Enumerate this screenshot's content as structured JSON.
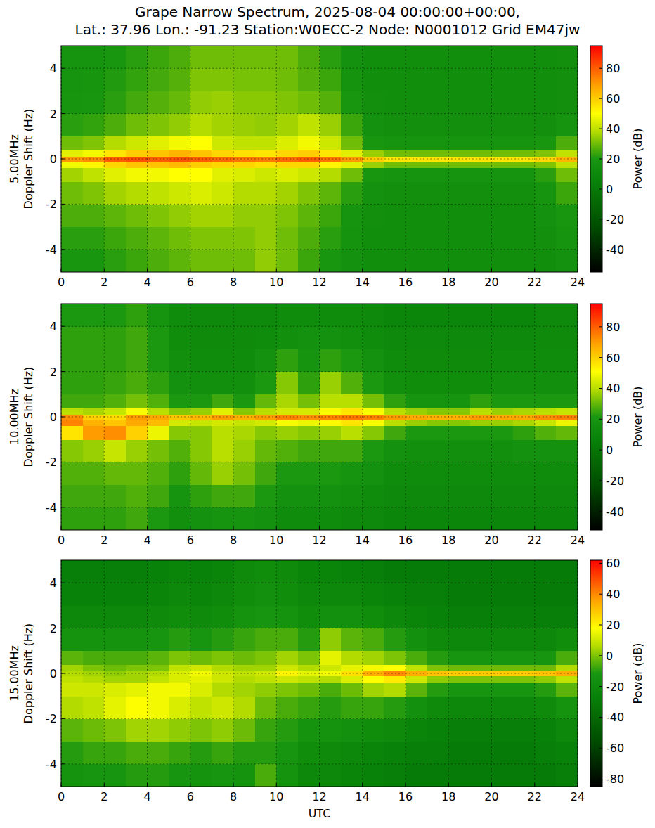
{
  "title": [
    "Grape Narrow Spectrum, 2025-08-04 00:00:00+00:00,",
    "Lat.: 37.96 Lon.: -91.23 Station:W0ECC-2 Node: N0001012 Grid EM47jw"
  ],
  "chart_data": [
    {
      "type": "heatmap",
      "y_label_lines": [
        "5.00MHz",
        "Doppler Shift (Hz)"
      ],
      "xlim": [
        0,
        24
      ],
      "xticks": [
        0,
        2,
        4,
        6,
        8,
        10,
        12,
        14,
        16,
        18,
        20,
        22,
        24
      ],
      "ylim": [
        -5,
        5
      ],
      "yticks": [
        -4,
        -2,
        0,
        2,
        4
      ],
      "grid": true,
      "x_edges": [
        0,
        1,
        2,
        3,
        4,
        5,
        6,
        7,
        8,
        9,
        10,
        11,
        12,
        13,
        14,
        15,
        16,
        17,
        18,
        19,
        20,
        21,
        22,
        23,
        24
      ],
      "y_edges": [
        -5,
        -4,
        -3,
        -2,
        -1,
        -0.4,
        -0.1,
        0.1,
        0.4,
        1,
        2,
        3,
        4,
        5
      ],
      "cells": [
        [
          20,
          20,
          22,
          24,
          26,
          28,
          30,
          30,
          30,
          34,
          30,
          24,
          20,
          16,
          14,
          14,
          14,
          14,
          14,
          14,
          14,
          14,
          14,
          16
        ],
        [
          22,
          22,
          24,
          26,
          28,
          30,
          32,
          32,
          32,
          34,
          30,
          26,
          22,
          17,
          14,
          14,
          14,
          14,
          14,
          14,
          14,
          14,
          15,
          18
        ],
        [
          26,
          26,
          28,
          30,
          32,
          34,
          36,
          36,
          34,
          34,
          32,
          28,
          24,
          18,
          15,
          14,
          14,
          14,
          14,
          14,
          14,
          14,
          16,
          20
        ],
        [
          30,
          32,
          36,
          38,
          40,
          42,
          44,
          42,
          38,
          38,
          36,
          32,
          28,
          22,
          16,
          15,
          15,
          15,
          15,
          15,
          15,
          15,
          18,
          24
        ],
        [
          36,
          40,
          45,
          48,
          48,
          50,
          50,
          45,
          44,
          42,
          44,
          42,
          38,
          30,
          20,
          18,
          18,
          18,
          18,
          18,
          18,
          18,
          22,
          30
        ],
        [
          48,
          52,
          58,
          62,
          62,
          64,
          60,
          58,
          58,
          56,
          58,
          58,
          52,
          45,
          35,
          30,
          30,
          30,
          30,
          30,
          30,
          30,
          32,
          40
        ],
        [
          70,
          72,
          80,
          82,
          80,
          82,
          80,
          78,
          76,
          75,
          78,
          80,
          76,
          70,
          60,
          55,
          55,
          55,
          55,
          55,
          55,
          55,
          58,
          65
        ],
        [
          45,
          48,
          55,
          60,
          62,
          65,
          62,
          58,
          56,
          55,
          58,
          60,
          55,
          45,
          35,
          30,
          30,
          30,
          30,
          30,
          30,
          30,
          32,
          40
        ],
        [
          30,
          32,
          38,
          42,
          45,
          48,
          50,
          42,
          40,
          40,
          44,
          48,
          42,
          30,
          20,
          18,
          18,
          18,
          18,
          18,
          18,
          18,
          20,
          26
        ],
        [
          22,
          23,
          26,
          30,
          32,
          34,
          38,
          36,
          35,
          34,
          36,
          40,
          35,
          24,
          16,
          15,
          15,
          15,
          15,
          15,
          15,
          15,
          15,
          18
        ],
        [
          19,
          20,
          22,
          25,
          27,
          29,
          34,
          35,
          33,
          33,
          32,
          30,
          27,
          20,
          15,
          14,
          14,
          14,
          14,
          14,
          14,
          14,
          14,
          15
        ],
        [
          18,
          19,
          21,
          23,
          25,
          27,
          32,
          32,
          31,
          31,
          30,
          27,
          24,
          17,
          14,
          14,
          14,
          14,
          14,
          14,
          14,
          14,
          14,
          15
        ],
        [
          18,
          18,
          20,
          22,
          24,
          26,
          30,
          30,
          30,
          30,
          30,
          26,
          22,
          16,
          14,
          14,
          14,
          14,
          14,
          14,
          14,
          14,
          14,
          15
        ]
      ],
      "colorbar": {
        "label": "Power (dB)",
        "range": [
          -55,
          95
        ],
        "ticks": [
          -40,
          -20,
          0,
          20,
          40,
          60,
          80
        ]
      }
    },
    {
      "type": "heatmap",
      "y_label_lines": [
        "10.00MHz",
        "Doppler Shift (Hz)"
      ],
      "xlim": [
        0,
        24
      ],
      "xticks": [
        0,
        2,
        4,
        6,
        8,
        10,
        12,
        14,
        16,
        18,
        20,
        22,
        24
      ],
      "ylim": [
        -5,
        5
      ],
      "yticks": [
        -4,
        -2,
        0,
        2,
        4
      ],
      "grid": true,
      "x_edges": [
        0,
        1,
        2,
        3,
        4,
        5,
        6,
        7,
        8,
        9,
        10,
        11,
        12,
        13,
        14,
        15,
        16,
        17,
        18,
        19,
        20,
        21,
        22,
        23,
        24
      ],
      "y_edges": [
        -5,
        -4,
        -3,
        -2,
        -1,
        -0.4,
        -0.1,
        0.1,
        0.4,
        1,
        2,
        3,
        4,
        5
      ],
      "cells": [
        [
          24,
          24,
          24,
          26,
          22,
          16,
          18,
          20,
          20,
          18,
          14,
          14,
          14,
          12,
          12,
          10,
          10,
          10,
          10,
          10,
          10,
          10,
          10,
          10
        ],
        [
          26,
          26,
          26,
          28,
          26,
          20,
          24,
          26,
          26,
          22,
          18,
          18,
          18,
          16,
          14,
          12,
          12,
          12,
          12,
          12,
          12,
          12,
          12,
          12
        ],
        [
          28,
          28,
          30,
          30,
          28,
          24,
          30,
          36,
          32,
          26,
          22,
          22,
          22,
          20,
          18,
          14,
          14,
          14,
          14,
          14,
          14,
          14,
          14,
          14
        ],
        [
          34,
          36,
          42,
          36,
          32,
          28,
          34,
          40,
          36,
          30,
          28,
          26,
          26,
          26,
          22,
          18,
          16,
          16,
          16,
          16,
          16,
          18,
          18,
          18
        ],
        [
          56,
          70,
          72,
          60,
          48,
          34,
          34,
          40,
          38,
          34,
          36,
          34,
          36,
          40,
          34,
          26,
          22,
          22,
          22,
          22,
          22,
          24,
          28,
          30
        ],
        [
          74,
          66,
          62,
          68,
          64,
          44,
          42,
          44,
          42,
          44,
          50,
          48,
          52,
          56,
          50,
          40,
          36,
          34,
          34,
          36,
          36,
          38,
          42,
          48
        ],
        [
          72,
          60,
          58,
          70,
          68,
          62,
          65,
          70,
          66,
          70,
          74,
          72,
          74,
          76,
          74,
          70,
          68,
          66,
          66,
          70,
          68,
          68,
          72,
          74
        ],
        [
          40,
          38,
          42,
          50,
          40,
          34,
          36,
          46,
          34,
          40,
          44,
          44,
          50,
          56,
          50,
          40,
          36,
          34,
          34,
          40,
          36,
          38,
          40,
          42
        ],
        [
          26,
          26,
          28,
          32,
          28,
          22,
          22,
          26,
          22,
          30,
          38,
          32,
          40,
          40,
          32,
          24,
          20,
          20,
          20,
          24,
          22,
          22,
          22,
          22
        ],
        [
          24,
          24,
          25,
          27,
          24,
          18,
          16,
          16,
          16,
          22,
          34,
          24,
          36,
          28,
          22,
          16,
          15,
          15,
          15,
          15,
          16,
          16,
          16,
          16
        ],
        [
          24,
          24,
          24,
          26,
          22,
          16,
          14,
          14,
          14,
          18,
          24,
          20,
          24,
          22,
          18,
          14,
          13,
          13,
          13,
          13,
          14,
          14,
          14,
          14
        ],
        [
          24,
          24,
          24,
          26,
          22,
          15,
          13,
          13,
          13,
          14,
          16,
          18,
          18,
          16,
          14,
          12,
          12,
          12,
          12,
          12,
          12,
          12,
          13,
          13
        ],
        [
          22,
          22,
          22,
          24,
          20,
          14,
          12,
          12,
          12,
          12,
          14,
          14,
          14,
          14,
          12,
          10,
          10,
          10,
          10,
          10,
          10,
          10,
          12,
          12
        ]
      ],
      "colorbar": {
        "label": "Power (dB)",
        "range": [
          -52,
          95
        ],
        "ticks": [
          -40,
          -20,
          0,
          20,
          40,
          60,
          80
        ]
      }
    },
    {
      "type": "heatmap",
      "y_label_lines": [
        "15.00MHz",
        "Doppler Shift (Hz)"
      ],
      "x_label": "UTC",
      "xlim": [
        0,
        24
      ],
      "xticks": [
        0,
        2,
        4,
        6,
        8,
        10,
        12,
        14,
        16,
        18,
        20,
        22,
        24
      ],
      "ylim": [
        -5,
        5
      ],
      "yticks": [
        -4,
        -2,
        0,
        2,
        4
      ],
      "grid": true,
      "x_edges": [
        0,
        1,
        2,
        3,
        4,
        5,
        6,
        7,
        8,
        9,
        10,
        11,
        12,
        13,
        14,
        15,
        16,
        17,
        18,
        19,
        20,
        21,
        22,
        23,
        24
      ],
      "y_edges": [
        -5,
        -4,
        -3,
        -2,
        -1,
        -0.4,
        -0.1,
        0.1,
        0.4,
        1,
        2,
        3,
        4,
        5
      ],
      "cells": [
        [
          -14,
          -12,
          -12,
          -10,
          -10,
          -12,
          -14,
          -12,
          -14,
          -6,
          -14,
          -22,
          -22,
          -24,
          -26,
          -28,
          -30,
          -30,
          -30,
          -30,
          -30,
          -30,
          -30,
          -28
        ],
        [
          -10,
          -8,
          -8,
          -6,
          -6,
          -8,
          -10,
          -8,
          -10,
          -10,
          -12,
          -18,
          -20,
          -22,
          -24,
          -26,
          -28,
          -28,
          -30,
          -30,
          -30,
          -30,
          -28,
          -26
        ],
        [
          -4,
          -2,
          0,
          4,
          4,
          2,
          0,
          2,
          -2,
          -8,
          -10,
          -14,
          -14,
          -16,
          -18,
          -20,
          -24,
          -26,
          -28,
          -28,
          -28,
          -28,
          -26,
          -22
        ],
        [
          6,
          8,
          14,
          18,
          16,
          12,
          8,
          10,
          6,
          -2,
          -6,
          -8,
          -10,
          -8,
          -8,
          -10,
          -16,
          -20,
          -22,
          -22,
          -22,
          -22,
          -20,
          -14
        ],
        [
          10,
          10,
          12,
          14,
          16,
          16,
          12,
          6,
          4,
          2,
          0,
          -2,
          -6,
          -2,
          4,
          6,
          -4,
          -10,
          -12,
          -12,
          -12,
          -12,
          -10,
          -4
        ],
        [
          8,
          6,
          4,
          4,
          8,
          12,
          14,
          10,
          6,
          8,
          10,
          8,
          6,
          12,
          18,
          22,
          10,
          2,
          0,
          0,
          0,
          0,
          2,
          8
        ],
        [
          6,
          4,
          2,
          4,
          6,
          12,
          16,
          10,
          8,
          10,
          20,
          14,
          16,
          24,
          34,
          40,
          34,
          30,
          28,
          28,
          28,
          28,
          30,
          34
        ],
        [
          4,
          0,
          -2,
          0,
          0,
          8,
          10,
          6,
          4,
          4,
          10,
          6,
          10,
          14,
          16,
          18,
          8,
          0,
          -2,
          -2,
          -2,
          -2,
          -2,
          6
        ],
        [
          -4,
          -6,
          -6,
          -6,
          -4,
          0,
          -2,
          0,
          -2,
          0,
          4,
          0,
          14,
          6,
          4,
          0,
          -6,
          -10,
          -12,
          -12,
          -12,
          -12,
          -12,
          -6
        ],
        [
          -14,
          -14,
          -14,
          -14,
          -12,
          -10,
          -12,
          -10,
          -8,
          -6,
          -6,
          -10,
          2,
          -4,
          -6,
          -10,
          -16,
          -20,
          -22,
          -22,
          -22,
          -22,
          -22,
          -18
        ],
        [
          -22,
          -22,
          -22,
          -22,
          -20,
          -18,
          -20,
          -18,
          -14,
          -12,
          -14,
          -18,
          -16,
          -16,
          -18,
          -22,
          -24,
          -26,
          -28,
          -28,
          -28,
          -28,
          -28,
          -28
        ],
        [
          -26,
          -26,
          -26,
          -26,
          -24,
          -22,
          -24,
          -22,
          -18,
          -16,
          -18,
          -22,
          -22,
          -22,
          -24,
          -26,
          -28,
          -28,
          -30,
          -30,
          -30,
          -30,
          -30,
          -30
        ],
        [
          -28,
          -28,
          -28,
          -28,
          -26,
          -24,
          -26,
          -24,
          -20,
          -18,
          -20,
          -24,
          -24,
          -26,
          -28,
          -30,
          -30,
          -30,
          -30,
          -30,
          -30,
          -30,
          -30,
          -30
        ]
      ],
      "colorbar": {
        "label": "Power (dB)",
        "range": [
          -85,
          62
        ],
        "ticks": [
          -80,
          -60,
          -40,
          -20,
          0,
          20,
          40,
          60
        ]
      }
    }
  ]
}
